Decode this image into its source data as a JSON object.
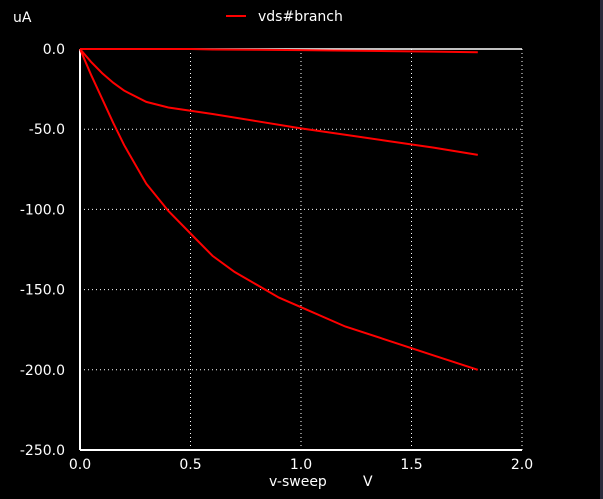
{
  "chart_data": {
    "type": "line",
    "ylabel": "uA",
    "xlabel": "v-sweep",
    "xunit": "V",
    "xlim": [
      0.0,
      2.0
    ],
    "ylim": [
      -250.0,
      0.0
    ],
    "x_ticks": [
      0.0,
      0.5,
      1.0,
      1.5,
      2.0
    ],
    "y_ticks": [
      0.0,
      -50.0,
      -100.0,
      -150.0,
      -200.0,
      -250.0
    ],
    "x_tick_labels": [
      "0.0",
      "0.5",
      "1.0",
      "1.5",
      "2.0"
    ],
    "y_tick_labels": [
      "0.0",
      "-50.0",
      "-100.0",
      "-150.0",
      "-200.0",
      "-250.0"
    ],
    "grid": true,
    "legend_position": "top",
    "legend": [
      "vds#branch"
    ],
    "series_color": "#ff0000",
    "background": "#000000",
    "series": [
      {
        "name": "vds#branch",
        "x": [
          0,
          0.05,
          0.1,
          0.15,
          0.2,
          0.3,
          0.4,
          0.5,
          0.6,
          0.8,
          1.0,
          1.2,
          1.4,
          1.6,
          1.8
        ],
        "values": [
          0,
          0,
          0,
          0,
          0,
          0,
          0,
          0,
          -0.3,
          -0.5,
          -0.7,
          -1.0,
          -1.3,
          -1.6,
          -2.0
        ]
      },
      {
        "name": "vds#branch",
        "x": [
          0,
          0.05,
          0.1,
          0.15,
          0.2,
          0.3,
          0.4,
          0.5,
          0.6,
          0.8,
          1.0,
          1.2,
          1.4,
          1.6,
          1.8
        ],
        "values": [
          0,
          -8,
          -15,
          -21,
          -26,
          -33,
          -36.5,
          -38.5,
          -40.5,
          -45,
          -49.5,
          -53.5,
          -57.5,
          -61.5,
          -66
        ]
      },
      {
        "name": "vds#branch",
        "x": [
          0,
          0.05,
          0.1,
          0.15,
          0.2,
          0.3,
          0.4,
          0.5,
          0.6,
          0.7,
          0.8,
          0.9,
          1.0,
          1.2,
          1.4,
          1.6,
          1.8
        ],
        "values": [
          0,
          -16,
          -31,
          -46,
          -60,
          -84,
          -101,
          -115,
          -129,
          -139,
          -147,
          -155,
          -161,
          -173,
          -182,
          -191,
          -200
        ]
      }
    ]
  }
}
